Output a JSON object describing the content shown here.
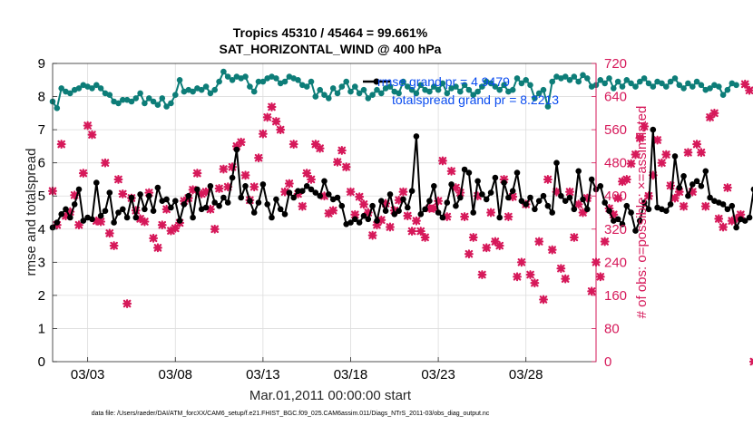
{
  "chart_data": {
    "type": "line",
    "title": "Tropics 45310 / 45464 = 99.661%",
    "subtitle": "SAT_HORIZONTAL_WIND @ 400 hPa",
    "xlabel": "Mar.01,2011 00:00:00 start",
    "ylabel": "rmse and totalspread",
    "ylabel_right": "# of obs: o=possible; ×=assimilated",
    "x_ticks": [
      "03/03",
      "03/08",
      "03/13",
      "03/18",
      "03/23",
      "03/28"
    ],
    "x_tick_days": [
      3,
      8,
      13,
      18,
      23,
      28
    ],
    "xlim_days": [
      1.0,
      32.0
    ],
    "ylim": [
      0,
      9
    ],
    "y_ticks": [
      "0",
      "1",
      "2",
      "3",
      "4",
      "5",
      "6",
      "7",
      "8",
      "9"
    ],
    "ylim_right": [
      0,
      720
    ],
    "y_ticks_right": [
      "0",
      "80",
      "160",
      "240",
      "320",
      "400",
      "480",
      "560",
      "640",
      "720"
    ],
    "grid": true,
    "legend_position": "top-right",
    "footnote": "data file: /Users/raeder/DAI/ATM_forcXX/CAM6_setup/f.e21.FHIST_BGC.f09_025.CAM6assim.011/Diags_NTrS_2011-03/obs_diag_output.nc",
    "colors": {
      "rmse": "#000000",
      "spread": "#0d7d78",
      "obs": "#d6195a",
      "legend_text": "#0a4cf0"
    },
    "series": [
      {
        "name": "rmse grand pr = 4.9479",
        "x_start_day": 1.0,
        "step_days": 0.25,
        "values": [
          4.05,
          4.2,
          4.45,
          4.6,
          4.35,
          4.75,
          5.2,
          4.25,
          4.35,
          4.3,
          5.4,
          4.4,
          4.55,
          5.1,
          4.2,
          4.5,
          4.6,
          4.35,
          4.95,
          4.35,
          5.05,
          4.6,
          5.0,
          4.55,
          5.25,
          4.85,
          4.9,
          4.65,
          4.85,
          4.25,
          4.75,
          5.0,
          4.35,
          5.2,
          4.6,
          4.65,
          5.3,
          4.8,
          4.7,
          4.95,
          4.8,
          5.55,
          6.4,
          4.95,
          5.3,
          4.85,
          4.5,
          4.8,
          5.35,
          4.75,
          4.35,
          4.9,
          4.6,
          4.45,
          5.1,
          4.95,
          5.15,
          5.15,
          5.3,
          5.2,
          5.1,
          5.0,
          5.45,
          5.05,
          4.9,
          4.95,
          4.7,
          4.15,
          4.2,
          4.3,
          4.2,
          4.4,
          4.3,
          4.7,
          4.25,
          4.85,
          4.55,
          5.05,
          4.45,
          4.55,
          4.9,
          4.65,
          5.15,
          6.8,
          4.45,
          4.6,
          4.85,
          5.3,
          4.5,
          4.35,
          4.8,
          5.35,
          4.7,
          4.95,
          5.8,
          5.7,
          4.5,
          5.45,
          5.05,
          4.9,
          5.1,
          5.55,
          4.35,
          5.4,
          4.95,
          5.15,
          5.7,
          4.85,
          4.75,
          4.95,
          4.6,
          4.85,
          5.0,
          4.7,
          4.5,
          6.0,
          5.0,
          4.85,
          4.95,
          4.6,
          5.75,
          4.9,
          4.6,
          5.5,
          5.2,
          5.3,
          4.8,
          4.55,
          4.25,
          4.3,
          4.15,
          4.7,
          4.5,
          3.95,
          4.25,
          4.8,
          4.6,
          7.0,
          4.65,
          4.6,
          4.55,
          4.75,
          6.2,
          5.25,
          5.6,
          5.0,
          5.35,
          5.45,
          5.3,
          5.75,
          4.95,
          4.85,
          4.8,
          4.75,
          4.6,
          4.7,
          4.05,
          4.3,
          4.25,
          4.35,
          5.2,
          5.35
        ]
      },
      {
        "name": "totalspread grand pr = 8.2213",
        "x_start_day": 1.0,
        "step_days": 0.25,
        "values": [
          7.85,
          7.65,
          8.25,
          8.15,
          8.1,
          8.2,
          8.25,
          8.35,
          8.3,
          8.25,
          8.35,
          8.25,
          8.1,
          8.05,
          7.85,
          7.8,
          7.9,
          7.9,
          7.85,
          7.95,
          8.1,
          7.8,
          7.95,
          7.85,
          7.75,
          7.95,
          7.7,
          7.8,
          8.05,
          8.5,
          8.15,
          8.2,
          8.15,
          8.25,
          8.2,
          8.3,
          8.1,
          8.2,
          8.45,
          8.75,
          8.6,
          8.5,
          8.6,
          8.55,
          8.6,
          8.3,
          8.15,
          8.45,
          8.45,
          8.55,
          8.6,
          8.55,
          8.4,
          8.45,
          8.6,
          8.55,
          8.5,
          8.35,
          8.3,
          8.45,
          8.0,
          8.2,
          8.05,
          7.95,
          8.25,
          8.1,
          8.3,
          8.45,
          8.15,
          8.3,
          8.1,
          8.2,
          7.95,
          8.05,
          8.2,
          8.1,
          8.25,
          8.3,
          8.15,
          8.1,
          8.45,
          8.3,
          8.2,
          8.1,
          8.35,
          8.2,
          8.15,
          8.3,
          8.2,
          8.4,
          8.1,
          8.25,
          8.3,
          8.15,
          8.35,
          8.2,
          8.05,
          8.15,
          8.3,
          8.45,
          8.4,
          8.3,
          8.2,
          8.35,
          8.15,
          8.2,
          8.55,
          8.4,
          8.5,
          8.35,
          7.95,
          8.1,
          8.2,
          7.7,
          8.45,
          8.6,
          8.55,
          8.6,
          8.5,
          8.6,
          8.45,
          8.65,
          8.55,
          8.3,
          8.35,
          8.5,
          8.4,
          8.55,
          8.25,
          8.45,
          8.3,
          8.5,
          8.4,
          8.3,
          8.45,
          8.55,
          8.4,
          8.3,
          8.45,
          8.4,
          8.3,
          8.45,
          8.55,
          8.35,
          8.25,
          8.4,
          8.3,
          8.45,
          8.35,
          8.2,
          8.25,
          8.35,
          8.3,
          8.05,
          8.2,
          8.4,
          8.35
        ]
      },
      {
        "name": "obs assimilated",
        "axis": "right",
        "x_start_day": 1.0,
        "step_days": 0.25,
        "values": [
          412,
          330,
          525,
          352,
          362,
          402,
          330,
          455,
          570,
          548,
          340,
          338,
          480,
          310,
          280,
          440,
          405,
          140,
          395,
          365,
          345,
          338,
          408,
          298,
          275,
          330,
          368,
          316,
          322,
          335,
          388,
          395,
          415,
          455,
          405,
          410,
          368,
          320,
          418,
          465,
          422,
          470,
          520,
          530,
          450,
          390,
          422,
          492,
          550,
          590,
          615,
          580,
          560,
          410,
          430,
          525,
          405,
          375,
          455,
          440,
          525,
          515,
          400,
          358,
          365,
          482,
          510,
          470,
          410,
          355,
          398,
          380,
          360,
          305,
          330,
          342,
          382,
          325,
          365,
          390,
          410,
          352,
          315,
          340,
          315,
          300,
          370,
          370,
          388,
          485,
          350,
          460,
          420,
          408,
          350,
          260,
          300,
          400,
          210,
          275,
          360,
          290,
          280,
          440,
          350,
          398,
          205,
          240,
          380,
          210,
          190,
          290,
          150,
          440,
          270,
          410,
          225,
          200,
          410,
          300,
          380,
          360,
          395,
          170,
          240,
          205,
          290,
          370,
          355,
          395,
          435,
          440,
          478,
          500,
          540,
          568,
          400,
          450,
          535,
          480,
          500,
          425,
          395,
          410,
          375,
          505,
          410,
          525,
          505,
          375,
          590,
          600,
          345,
          325,
          420,
          340,
          345,
          355,
          670,
          655,
          0
        ]
      }
    ]
  }
}
